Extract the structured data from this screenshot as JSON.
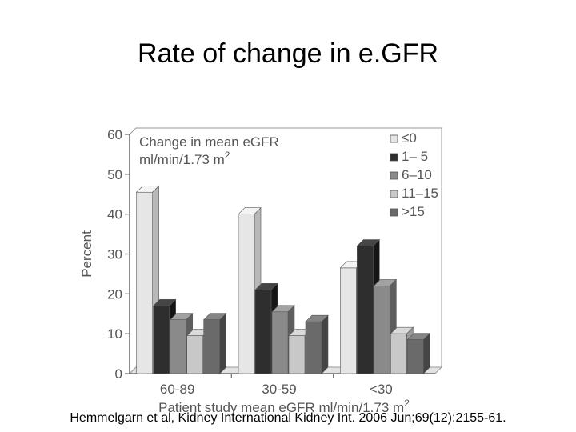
{
  "slide": {
    "title": "Rate of change in e.GFR",
    "citation": "Hemmelgarn et al, Kidney International Kidney Int. 2006 Jun;69(12):2155-61."
  },
  "chart_data": {
    "type": "bar",
    "title": "",
    "legend_title_line1": "Change in mean eGFR",
    "legend_title_line2": "ml/min/1.73 m",
    "legend_title_sup": "2",
    "legend_placement": "top-right",
    "xlabel": "Patient study mean eGFR ml/min/1.73 m",
    "xlabel_sup": "2",
    "ylabel": "Percent",
    "ylim": [
      0,
      60
    ],
    "yticks": [
      "0",
      "10",
      "20",
      "30",
      "40",
      "50",
      "60"
    ],
    "grid": false,
    "categories": [
      "60-89",
      "30-59",
      "<30"
    ],
    "series": [
      {
        "name": "≤0",
        "color": "#e6e6e6",
        "side": "#b8b8b8",
        "top": "#f4f4f4",
        "values": [
          45.5,
          40,
          26.5
        ]
      },
      {
        "name": "1– 5",
        "color": "#2e2e2e",
        "side": "#151515",
        "top": "#454545",
        "values": [
          17,
          21,
          32
        ]
      },
      {
        "name": "6–10",
        "color": "#8a8a8a",
        "side": "#5e5e5e",
        "top": "#a2a2a2",
        "values": [
          13.5,
          15.5,
          22
        ]
      },
      {
        "name": "11–15",
        "color": "#c8c8c8",
        "side": "#999999",
        "top": "#dadada",
        "values": [
          9.5,
          9.5,
          10
        ]
      },
      {
        "name": ">15",
        "color": "#6a6a6a",
        "side": "#454545",
        "top": "#858585",
        "values": [
          13.5,
          13,
          8.5
        ]
      }
    ]
  }
}
